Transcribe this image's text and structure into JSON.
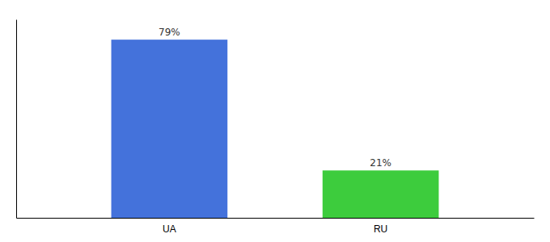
{
  "chart_data": {
    "type": "bar",
    "categories": [
      "UA",
      "RU"
    ],
    "values": [
      79,
      21
    ],
    "value_labels": [
      "79%",
      "21%"
    ],
    "colors": [
      "#4472db",
      "#3dcc3d"
    ],
    "ylim": [
      0,
      88
    ],
    "data_labels": true,
    "tick_labels": "x",
    "grid": false
  }
}
